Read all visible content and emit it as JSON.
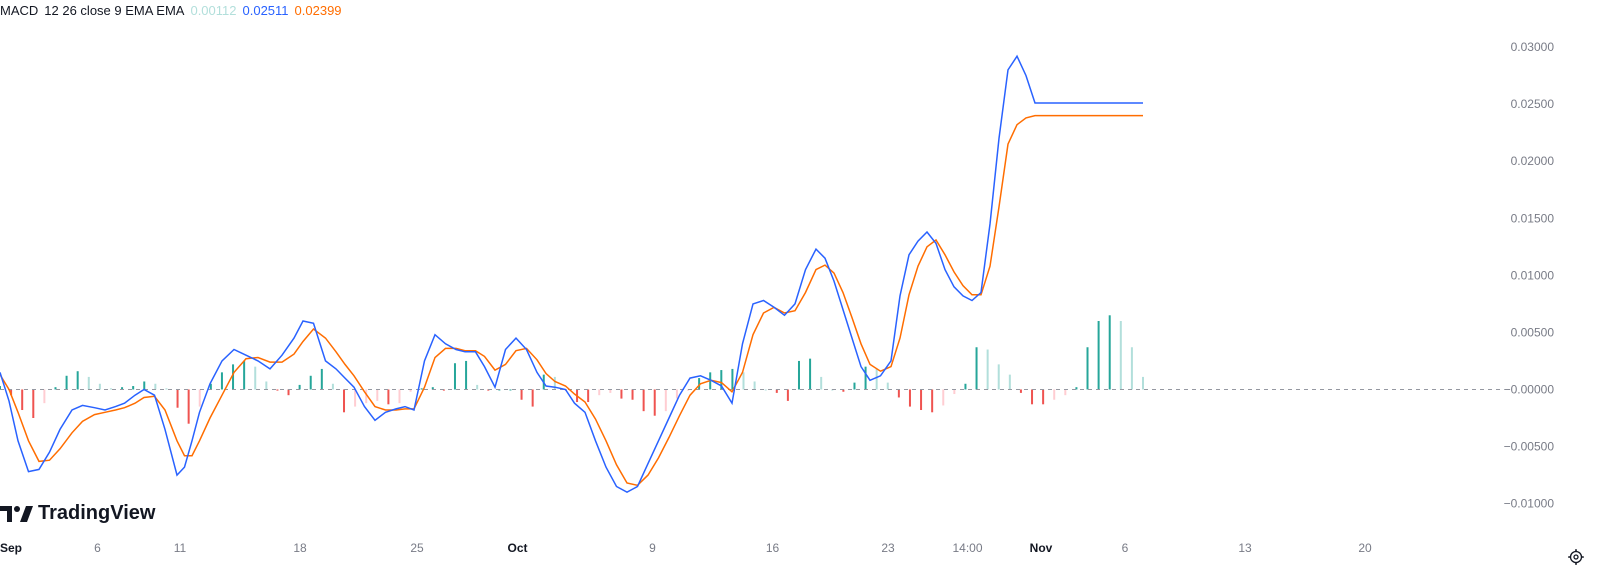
{
  "legend": {
    "title": "MACD",
    "params": "12 26 close 9 EMA EMA",
    "histogram_value": "0.00112",
    "macd_value": "0.02511",
    "signal_value": "0.02399"
  },
  "watermark": "TradingView",
  "icons": {
    "settings": "settings-gear-icon",
    "logo": "tradingview-logo-icon"
  },
  "colors": {
    "macd": "#2962ff",
    "signal": "#ff6d00",
    "hist_pos_strong": "#26a69a",
    "hist_pos_weak": "#b2dfdb",
    "hist_neg_strong": "#ef5350",
    "hist_neg_weak": "#ffcdd2",
    "zero_line": "#9598a1"
  },
  "chart_data": {
    "type": "line",
    "title": "MACD 12 26 close 9 EMA EMA",
    "ylim": [
      -0.011,
      0.0315
    ],
    "y_ticks": [
      "0.03000",
      "0.02500",
      "0.02000",
      "0.01500",
      "0.01000",
      "0.00500",
      "0.00000",
      "−0.00500",
      "−0.01000"
    ],
    "y_tick_values": [
      0.03,
      0.025,
      0.02,
      0.015,
      0.01,
      0.005,
      0.0,
      -0.005,
      -0.01
    ],
    "zero_label": "−0.00000",
    "x_labels": [
      "Sep",
      "6",
      "11",
      "18",
      "25",
      "Oct",
      "9",
      "16",
      "23",
      "14:00",
      "Nov",
      "6",
      "13",
      "20"
    ],
    "x_label_bold": [
      true,
      false,
      false,
      false,
      false,
      true,
      false,
      false,
      false,
      false,
      true,
      false,
      false,
      false
    ],
    "x_range": [
      0,
      100
    ],
    "x_label_positions": [
      0,
      6.5,
      12,
      20,
      27.8,
      34.5,
      43.5,
      51.5,
      59.2,
      64.5,
      69.4,
      75.0,
      83.0,
      91.0
    ],
    "series": [
      {
        "name": "MACD",
        "x": [
          0,
          0.6,
          1.2,
          1.9,
          2.6,
          3.3,
          4.0,
          4.8,
          5.5,
          6.3,
          7.0,
          7.7,
          8.3,
          9.0,
          9.6,
          10.3,
          11.0,
          11.8,
          12.3,
          12.8,
          13.3,
          14.0,
          14.8,
          15.6,
          16.4,
          17.2,
          18.0,
          18.8,
          19.6,
          20.2,
          20.9,
          21.7,
          22.4,
          23.0,
          23.6,
          24.3,
          25.0,
          25.7,
          26.4,
          27.0,
          27.6,
          28.3,
          29.0,
          29.7,
          30.4,
          31.0,
          31.7,
          32.3,
          33.0,
          33.7,
          34.4,
          35.1,
          35.8,
          36.4,
          37.0,
          37.7,
          38.3,
          39.0,
          39.7,
          40.4,
          41.1,
          41.8,
          42.5,
          43.2,
          43.9,
          44.6,
          45.3,
          46.0,
          46.7,
          47.4,
          48.1,
          48.8,
          49.5,
          50.2,
          50.9,
          51.6,
          52.3,
          53.0,
          53.7,
          54.4,
          55.0,
          55.6,
          56.2,
          56.8,
          57.4,
          58.0,
          58.7,
          59.4,
          60.0,
          60.6,
          61.2,
          61.8,
          62.4,
          63.0,
          63.6,
          64.2,
          64.8,
          65.4,
          66.0,
          66.6,
          67.2,
          67.8,
          68.4,
          69.0,
          69.6,
          70.2,
          70.8,
          71.4,
          72.0,
          72.6,
          73.1,
          73.6,
          74.1,
          74.6,
          75.0,
          75.4,
          75.8,
          76.2
        ],
        "values": [
          0.0015,
          -0.001,
          -0.0045,
          -0.0072,
          -0.007,
          -0.0055,
          -0.0035,
          -0.0018,
          -0.0014,
          -0.0016,
          -0.0018,
          -0.0015,
          -0.0012,
          -0.0005,
          0.0,
          -0.0005,
          -0.0035,
          -0.0075,
          -0.0068,
          -0.0045,
          -0.002,
          0.0005,
          0.0025,
          0.0035,
          0.003,
          0.0025,
          0.0018,
          0.003,
          0.0045,
          0.006,
          0.0058,
          0.0025,
          0.0018,
          0.001,
          0.0002,
          -0.0015,
          -0.0027,
          -0.002,
          -0.0017,
          -0.0015,
          -0.0018,
          0.0025,
          0.0048,
          0.004,
          0.0035,
          0.0033,
          0.0033,
          0.002,
          0.0002,
          0.0035,
          0.0045,
          0.0035,
          0.0015,
          0.0003,
          0.0002,
          0.0,
          -0.0012,
          -0.002,
          -0.0045,
          -0.0068,
          -0.0085,
          -0.009,
          -0.0085,
          -0.0065,
          -0.0045,
          -0.0025,
          -0.0005,
          0.001,
          0.0012,
          0.0008,
          0.0003,
          -0.0012,
          0.004,
          0.0075,
          0.0078,
          0.0072,
          0.0065,
          0.0075,
          0.0105,
          0.0123,
          0.0115,
          0.0095,
          0.007,
          0.0045,
          0.002,
          0.0008,
          0.0012,
          0.0025,
          0.0082,
          0.0118,
          0.013,
          0.0138,
          0.0128,
          0.0105,
          0.009,
          0.0082,
          0.0078,
          0.0085,
          0.0145,
          0.022,
          0.028,
          0.0292,
          0.0275,
          0.0251,
          0.0251,
          0.0251,
          0.0251,
          0.0251,
          0.0251,
          0.0251,
          0.0251,
          0.0251,
          0.0251,
          0.0251,
          0.0251,
          0.0251,
          0.0251,
          0.0251
        ]
      },
      {
        "name": "Signal",
        "x": [
          0,
          0.6,
          1.2,
          1.9,
          2.6,
          3.3,
          4.0,
          4.8,
          5.5,
          6.3,
          7.0,
          7.7,
          8.3,
          9.0,
          9.6,
          10.3,
          11.0,
          11.8,
          12.3,
          12.8,
          13.3,
          14.0,
          14.8,
          15.6,
          16.4,
          17.2,
          18.0,
          18.8,
          19.6,
          20.2,
          20.9,
          21.7,
          22.4,
          23.0,
          23.6,
          24.3,
          25.0,
          25.7,
          26.4,
          27.0,
          27.6,
          28.3,
          29.0,
          29.7,
          30.4,
          31.0,
          31.7,
          32.3,
          33.0,
          33.7,
          34.4,
          35.1,
          35.8,
          36.4,
          37.0,
          37.7,
          38.3,
          39.0,
          39.7,
          40.4,
          41.1,
          41.8,
          42.5,
          43.2,
          43.9,
          44.6,
          45.3,
          46.0,
          46.7,
          47.4,
          48.1,
          48.8,
          49.5,
          50.2,
          50.9,
          51.6,
          52.3,
          53.0,
          53.7,
          54.4,
          55.0,
          55.6,
          56.2,
          56.8,
          57.4,
          58.0,
          58.7,
          59.4,
          60.0,
          60.6,
          61.2,
          61.8,
          62.4,
          63.0,
          63.6,
          64.2,
          64.8,
          65.4,
          66.0,
          66.6,
          67.2,
          67.8,
          68.4,
          69.0,
          69.6,
          70.2,
          70.8,
          71.4,
          72.0,
          72.6,
          73.1,
          73.6,
          74.1,
          74.6,
          75.0,
          75.4,
          75.8,
          76.2
        ],
        "values": [
          0.0013,
          0.0,
          -0.002,
          -0.0045,
          -0.0063,
          -0.0062,
          -0.0052,
          -0.0038,
          -0.0028,
          -0.0022,
          -0.002,
          -0.0018,
          -0.0016,
          -0.0012,
          -0.0007,
          -0.0006,
          -0.0018,
          -0.0045,
          -0.0058,
          -0.0058,
          -0.0045,
          -0.0025,
          -0.0005,
          0.0015,
          0.0027,
          0.0028,
          0.0024,
          0.0024,
          0.0031,
          0.0042,
          0.0053,
          0.0045,
          0.0033,
          0.0022,
          0.0012,
          -0.0002,
          -0.0015,
          -0.0018,
          -0.0018,
          -0.0017,
          -0.0017,
          0.0002,
          0.0028,
          0.0036,
          0.0036,
          0.0034,
          0.0034,
          0.0029,
          0.0017,
          0.0022,
          0.0034,
          0.0036,
          0.0026,
          0.0014,
          0.0007,
          0.0003,
          -0.0004,
          -0.0011,
          -0.0026,
          -0.0045,
          -0.0066,
          -0.0082,
          -0.0084,
          -0.0075,
          -0.006,
          -0.0042,
          -0.0023,
          -0.0005,
          0.0005,
          0.0008,
          0.0006,
          -0.0002,
          0.0015,
          0.0048,
          0.0067,
          0.0072,
          0.0067,
          0.0069,
          0.0085,
          0.0105,
          0.0109,
          0.0102,
          0.0085,
          0.0063,
          0.004,
          0.0022,
          0.0016,
          0.002,
          0.0045,
          0.0083,
          0.0108,
          0.0125,
          0.0131,
          0.0118,
          0.0103,
          0.0091,
          0.0083,
          0.0083,
          0.0108,
          0.016,
          0.0215,
          0.0232,
          0.0238,
          0.024,
          0.024,
          0.024,
          0.024,
          0.024,
          0.024,
          0.024,
          0.024,
          0.024,
          0.024,
          0.024,
          0.024,
          0.024,
          0.024,
          0.024
        ]
      }
    ],
    "histogram_values": [
      0.0003,
      -0.0005,
      -0.0018,
      -0.0025,
      -0.0012,
      0.0002,
      0.0012,
      0.0016,
      0.0011,
      0.0005,
      0.0001,
      0.0002,
      0.0003,
      0.0007,
      0.0005,
      0.0001,
      -0.0016,
      -0.003,
      -0.0015,
      0.0005,
      0.0015,
      0.0022,
      0.0025,
      0.002,
      0.0007,
      -0.0001,
      -0.0005,
      0.0004,
      0.0012,
      0.0018,
      0.0005,
      -0.002,
      -0.0015,
      -0.0012,
      -0.001,
      -0.0013,
      -0.0012,
      -0.0002,
      0.0001,
      0.0002,
      -0.0001,
      0.0023,
      0.0025,
      0.0004,
      -0.0001,
      0.0,
      0.0,
      -0.0009,
      -0.0015,
      0.0013,
      0.0011,
      -0.0001,
      -0.0011,
      -0.0011,
      -0.0005,
      -0.0003,
      -0.0008,
      -0.0009,
      -0.0019,
      -0.0023,
      -0.0019,
      -0.0008,
      -0.0001,
      0.001,
      0.0015,
      0.0017,
      0.0018,
      0.0015,
      0.0007,
      0.0,
      -0.0003,
      -0.001,
      0.0025,
      0.0027,
      0.0011,
      0.0,
      -0.0002,
      0.0006,
      0.002,
      0.0018,
      0.0006,
      -0.0007,
      -0.0015,
      -0.0018,
      -0.002,
      -0.0014,
      -0.0004,
      0.0005,
      0.0037,
      0.0035,
      0.0022,
      0.0013,
      -0.0003,
      -0.0013,
      -0.0013,
      -0.0009,
      -0.0005,
      0.0002,
      0.0037,
      0.006,
      0.0065,
      0.006,
      0.0037,
      0.0011
    ]
  }
}
